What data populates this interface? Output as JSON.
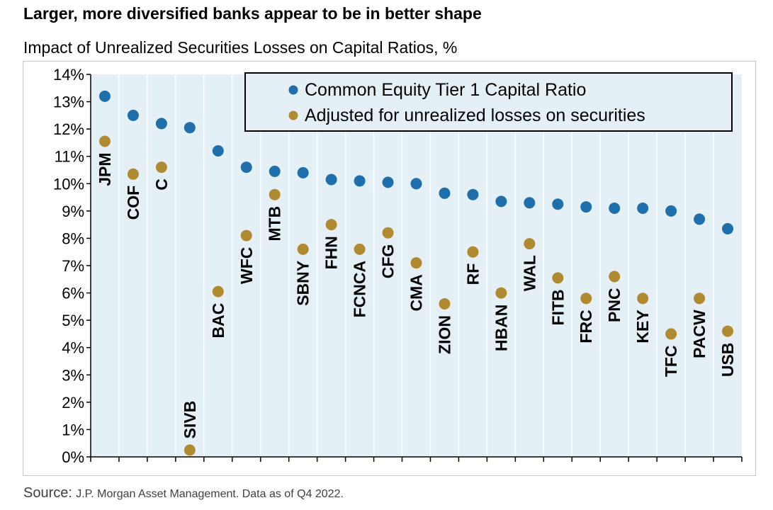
{
  "header": {
    "title": "Larger, more diversified banks appear to be in better shape",
    "subtitle": "Impact of Unrealized Securities Losses on Capital Ratios, %"
  },
  "footer": {
    "source_label": "Source:",
    "source_text": "J.P. Morgan Asset Management. Data as of Q4 2022."
  },
  "colors": {
    "plot_background": "#e4f0f6",
    "grid": "#ffffff",
    "series_cet1": "#1f6fad",
    "series_adjusted": "#b08a30",
    "axis": "#000000"
  },
  "chart_data": {
    "type": "scatter",
    "title": "Impact of Unrealized Securities Losses on Capital Ratios, %",
    "categories": [
      "JPM",
      "COF",
      "C",
      "SIVB",
      "BAC",
      "WFC",
      "MTB",
      "SBNY",
      "FHN",
      "FCNCA",
      "CFG",
      "CMA",
      "ZION",
      "RF",
      "HBAN",
      "WAL",
      "FITB",
      "FRC",
      "PNC",
      "KEY",
      "TFC",
      "PACW",
      "USB"
    ],
    "series": [
      {
        "name": "Common Equity Tier 1 Capital Ratio",
        "values": [
          13.2,
          12.5,
          12.2,
          12.05,
          11.2,
          10.6,
          10.45,
          10.4,
          10.15,
          10.1,
          10.05,
          10.0,
          9.65,
          9.6,
          9.35,
          9.3,
          9.25,
          9.15,
          9.1,
          9.1,
          9.0,
          8.7,
          8.35
        ]
      },
      {
        "name": "Adjusted for unrealized losses on securities",
        "values": [
          11.55,
          10.35,
          10.6,
          0.25,
          6.05,
          8.1,
          9.6,
          7.6,
          8.5,
          7.6,
          8.2,
          7.1,
          5.6,
          7.5,
          6.0,
          7.8,
          6.55,
          5.8,
          6.6,
          5.8,
          4.5,
          5.8,
          4.6
        ]
      }
    ],
    "y_ticks": [
      "0%",
      "1%",
      "2%",
      "3%",
      "4%",
      "5%",
      "6%",
      "7%",
      "8%",
      "9%",
      "10%",
      "11%",
      "12%",
      "13%",
      "14%"
    ],
    "ylim": [
      0,
      14
    ],
    "grid": true,
    "legend_position": "top-right"
  }
}
